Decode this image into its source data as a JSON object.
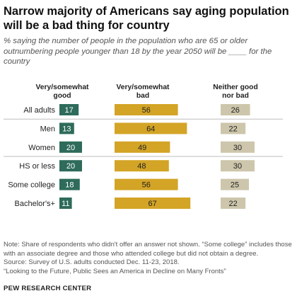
{
  "title": "Narrow majority of Americans say aging population will be a bad thing for country",
  "subtitle": "% saying the number of people in the population who are 65 or older outnumbering people younger than 18 by the year 2050 will be ____ for the country",
  "chart_data": {
    "type": "bar",
    "categories": [
      "All adults",
      "Men",
      "Women",
      "HS or less",
      "Some college",
      "Bachelor's+"
    ],
    "series": [
      {
        "name": "Very/somewhat good",
        "values": [
          17,
          13,
          20,
          20,
          18,
          11
        ],
        "color": "#2e6b5a"
      },
      {
        "name": "Very/somewhat bad",
        "values": [
          56,
          64,
          49,
          48,
          56,
          67
        ],
        "color": "#d3a426"
      },
      {
        "name": "Neither good nor bad",
        "values": [
          26,
          22,
          30,
          30,
          25,
          22
        ],
        "color": "#cdc6ac"
      }
    ],
    "group_separators_after": [
      "All adults",
      "Women"
    ]
  },
  "notes": {
    "note": "Note: Share of respondents who didn't offer an answer not shown. “Some college” includes those with an associate degree and those who attended college but did not obtain a degree.",
    "source": "Source: Survey of U.S. adults conducted Dec. 11-23, 2018.",
    "report": "“Looking to the Future, Public Sees an America in Decline on Many Fronts”"
  },
  "brand": "PEW RESEARCH CENTER"
}
